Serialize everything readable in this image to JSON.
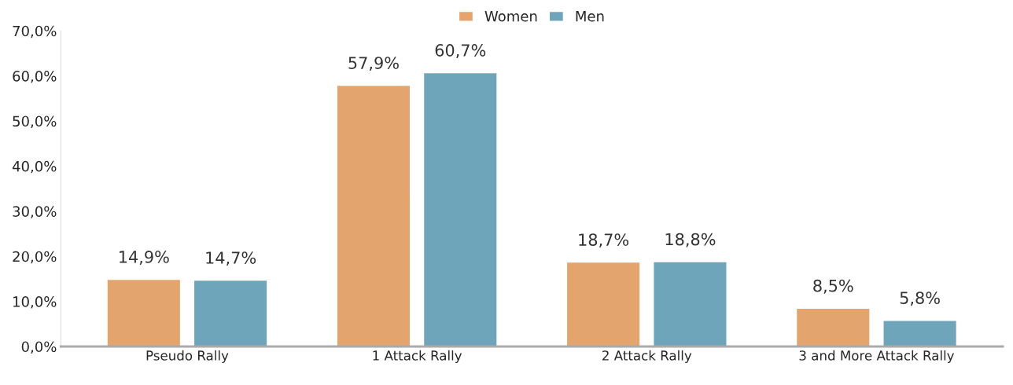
{
  "chart_data": {
    "type": "bar",
    "categories": [
      "Pseudo Rally",
      "1 Attack Rally",
      "2 Attack Rally",
      "3 and More Attack Rally"
    ],
    "series": [
      {
        "name": "Women",
        "color": "#e3a46e",
        "values": [
          14.9,
          57.9,
          18.7,
          8.5
        ],
        "value_labels": [
          "14,9%",
          "57,9%",
          "18,7%",
          "8,5%"
        ]
      },
      {
        "name": "Men",
        "color": "#6fa5bb",
        "values": [
          14.7,
          60.7,
          18.8,
          5.8
        ],
        "value_labels": [
          "14,7%",
          "60,7%",
          "18,8%",
          "5,8%"
        ]
      }
    ],
    "ylim": [
      0,
      70
    ],
    "yticks": [
      {
        "value": 0,
        "label": "0,0%"
      },
      {
        "value": 10,
        "label": "10,0%"
      },
      {
        "value": 20,
        "label": "20,0%"
      },
      {
        "value": 30,
        "label": "30,0%"
      },
      {
        "value": 40,
        "label": "40,0%"
      },
      {
        "value": 50,
        "label": "50,0%"
      },
      {
        "value": 60,
        "label": "60,0%"
      },
      {
        "value": 70,
        "label": "70,0%"
      }
    ],
    "grid": false,
    "legend": "top"
  }
}
